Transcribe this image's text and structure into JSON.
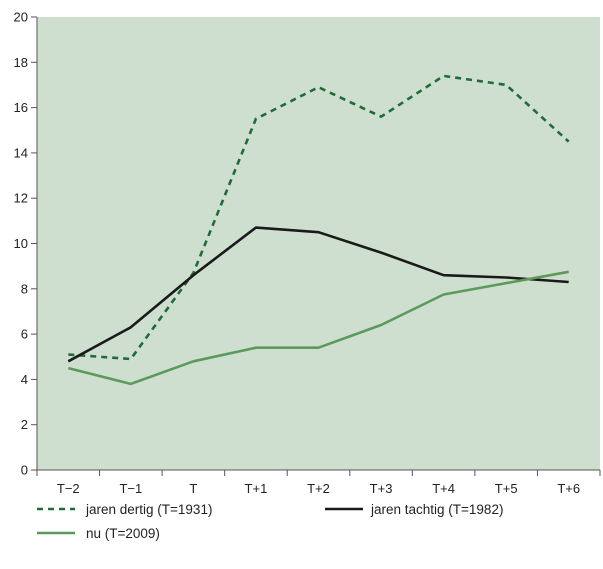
{
  "colors": {
    "plot_background": "#cfdfcf",
    "axis": "#555555",
    "dashed_series": "#1f6b3a",
    "dark_series": "#1a1a1a",
    "light_series": "#5c9a5c"
  },
  "chart_data": {
    "type": "line",
    "title": "",
    "xlabel": "",
    "ylabel": "",
    "categories": [
      "T−2",
      "T−1",
      "T",
      "T+1",
      "T+2",
      "T+3",
      "T+4",
      "T+5",
      "T+6"
    ],
    "ylim": [
      0,
      20
    ],
    "yticks": [
      0,
      2,
      4,
      6,
      8,
      10,
      12,
      14,
      16,
      18,
      20
    ],
    "grid": false,
    "legend_position": "bottom",
    "series": [
      {
        "name": "jaren dertig (T=1931)",
        "style": "dashed",
        "color": "#1f6b3a",
        "values": [
          5.1,
          4.9,
          8.7,
          15.5,
          16.9,
          15.6,
          17.4,
          17.0,
          14.5
        ]
      },
      {
        "name": "jaren tachtig (T=1982)",
        "style": "solid",
        "color": "#1a1a1a",
        "values": [
          4.8,
          6.3,
          8.6,
          10.7,
          10.5,
          9.6,
          8.6,
          8.5,
          8.3
        ]
      },
      {
        "name": "nu (T=2009)",
        "style": "solid",
        "color": "#5c9a5c",
        "values": [
          4.5,
          3.8,
          4.8,
          5.4,
          5.4,
          6.4,
          7.75,
          8.25,
          8.75
        ]
      }
    ]
  }
}
